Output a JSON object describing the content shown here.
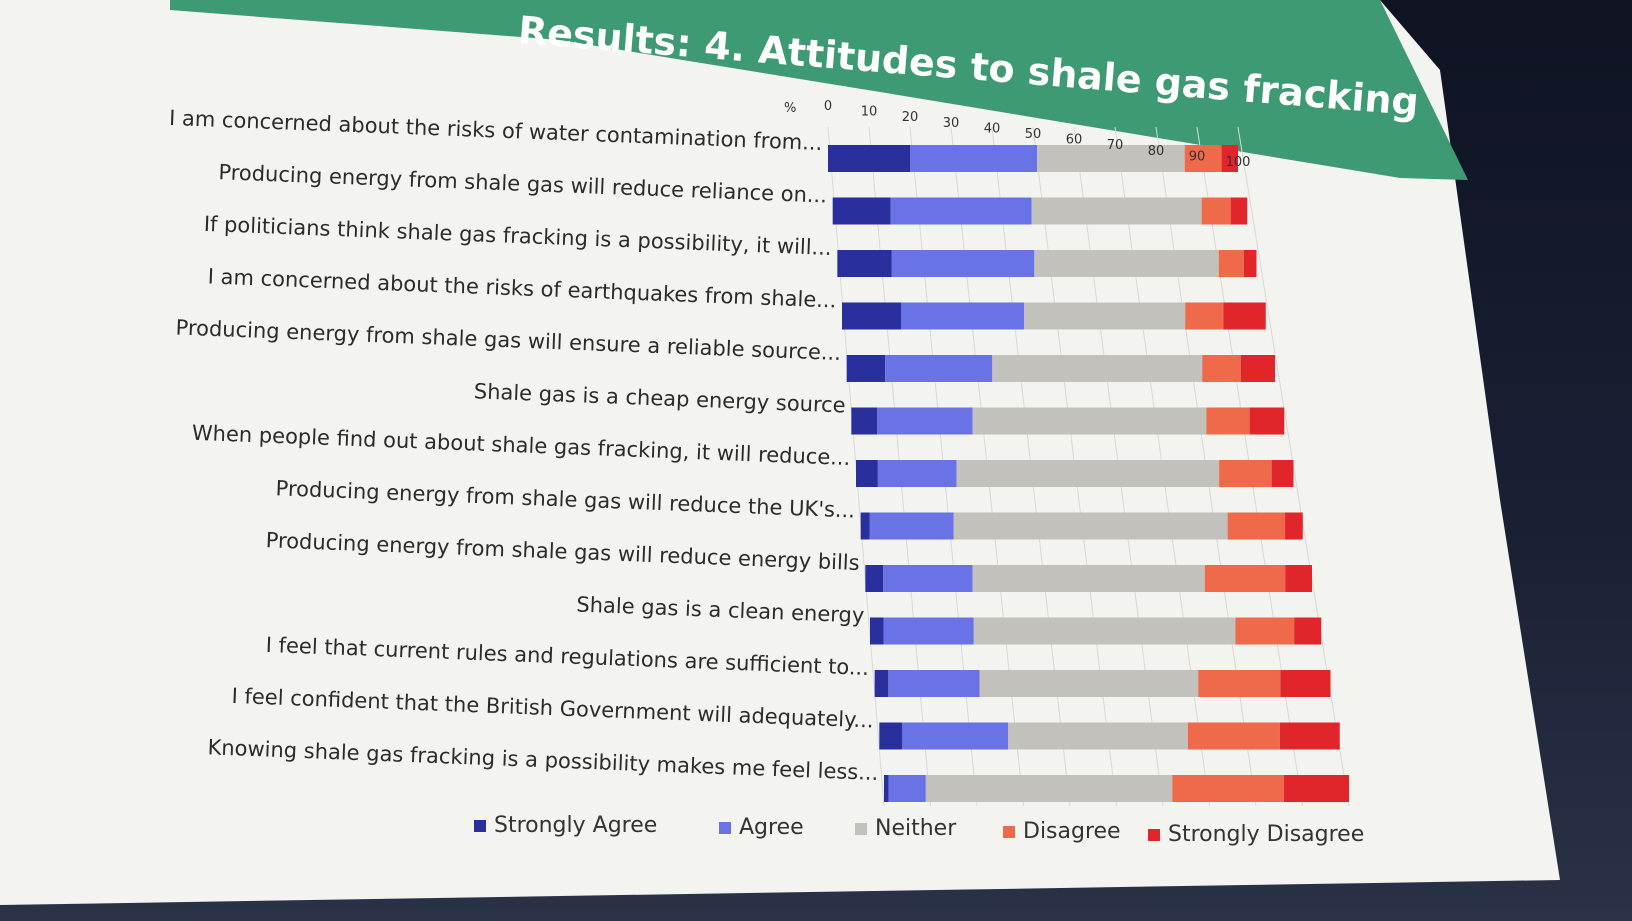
{
  "slide": {
    "title": "Results: 4. Attitudes to shale gas fracking"
  },
  "colors": {
    "strongly_agree": "#2a2f9e",
    "agree": "#6a73e6",
    "neither": "#c3c1bb",
    "disagree": "#ef6a4a",
    "strongly_disagree": "#e0252b",
    "banner": "#3e9a72"
  },
  "chart_data": {
    "type": "bar",
    "orientation": "horizontal",
    "stacked": true,
    "title": "Results: 4. Attitudes to shale gas fracking",
    "axis_unit_label": "%",
    "xlim": [
      0,
      100
    ],
    "xticks": [
      "0",
      "10",
      "20",
      "30",
      "40",
      "50",
      "60",
      "70",
      "80",
      "90",
      "100"
    ],
    "grid": true,
    "legend_position": "bottom",
    "categories": [
      "I am concerned about the risks of water contamination from...",
      "Producing energy from shale gas will reduce reliance on...",
      "If politicians think shale gas fracking is a possibility, it will...",
      "I am concerned about the risks of earthquakes from shale...",
      "Producing energy from shale gas will ensure a reliable source...",
      "Shale gas is a cheap energy source",
      "When people find out about shale gas fracking, it will reduce...",
      "Producing energy from shale gas will reduce the UK's...",
      "Producing energy from shale gas will reduce energy bills",
      "Shale gas is a clean energy",
      "I feel that current rules and regulations are sufficient to...",
      "I feel confident that the British Government will adequately...",
      "Knowing shale gas fracking is a possibility makes me feel less..."
    ],
    "series": [
      {
        "name": "Strongly Agree",
        "values": [
          20,
          14,
          13,
          14,
          9,
          6,
          5,
          2,
          4,
          3,
          3,
          5,
          1
        ]
      },
      {
        "name": "Agree",
        "values": [
          31,
          34,
          34,
          29,
          25,
          22,
          18,
          19,
          20,
          20,
          20,
          23,
          8
        ]
      },
      {
        "name": "Neither",
        "values": [
          36,
          41,
          44,
          38,
          49,
          54,
          60,
          62,
          52,
          58,
          48,
          39,
          53
        ]
      },
      {
        "name": "Disagree",
        "values": [
          9,
          7,
          6,
          9,
          9,
          10,
          12,
          13,
          18,
          13,
          18,
          20,
          24
        ]
      },
      {
        "name": "Strongly Disagree",
        "values": [
          4,
          4,
          3,
          10,
          8,
          8,
          5,
          4,
          6,
          6,
          11,
          13,
          14
        ]
      }
    ]
  }
}
